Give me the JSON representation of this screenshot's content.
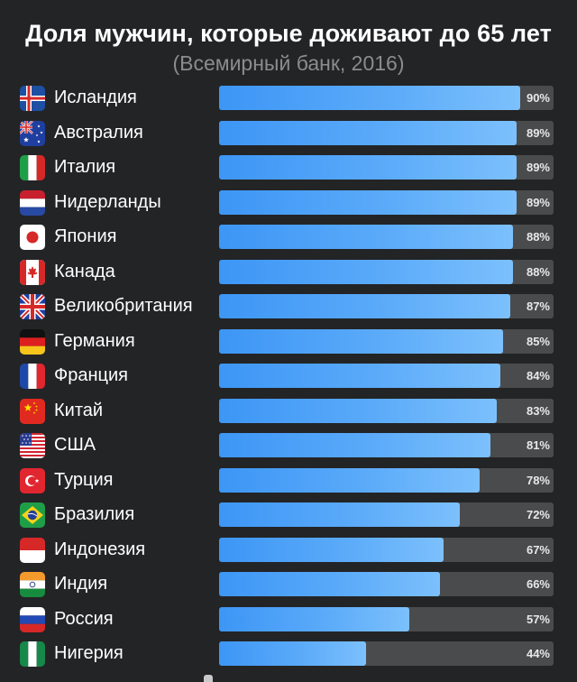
{
  "chart_data": {
    "type": "bar",
    "orientation": "horizontal",
    "title": "Доля мужчин, которые доживают до 65 лет",
    "subtitle": "(Всемирный банк, 2016)",
    "unit_suffix": "%",
    "xlim": [
      0,
      100
    ],
    "bar_color": "#4ea3f8",
    "track_color": "#4a4b4d",
    "categories": [
      "Исландия",
      "Австралия",
      "Италия",
      "Нидерланды",
      "Япония",
      "Канада",
      "Великобритания",
      "Германия",
      "Франция",
      "Китай",
      "США",
      "Турция",
      "Бразилия",
      "Индонезия",
      "Индия",
      "Россия",
      "Нигерия"
    ],
    "values": [
      90,
      89,
      89,
      89,
      88,
      88,
      87,
      85,
      84,
      83,
      81,
      78,
      72,
      67,
      66,
      57,
      44
    ],
    "labels": [
      "90%",
      "89%",
      "89%",
      "89%",
      "88%",
      "88%",
      "87%",
      "85%",
      "84%",
      "83%",
      "81%",
      "78%",
      "72%",
      "67%",
      "66%",
      "57%",
      "44%"
    ],
    "flag_icons": [
      "iceland-flag-icon",
      "australia-flag-icon",
      "italy-flag-icon",
      "netherlands-flag-icon",
      "japan-flag-icon",
      "canada-flag-icon",
      "uk-flag-icon",
      "germany-flag-icon",
      "france-flag-icon",
      "china-flag-icon",
      "usa-flag-icon",
      "turkey-flag-icon",
      "brazil-flag-icon",
      "indonesia-flag-icon",
      "india-flag-icon",
      "russia-flag-icon",
      "nigeria-flag-icon"
    ]
  }
}
